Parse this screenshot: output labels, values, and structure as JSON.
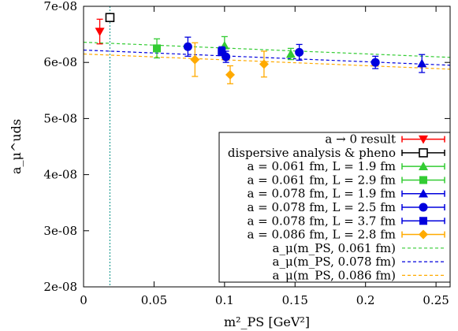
{
  "chart_data": {
    "type": "scatter",
    "xlabel": "m²_PS [GeV²]",
    "ylabel": "a_μ^uds",
    "xlim": [
      0,
      0.26
    ],
    "ylim": [
      2e-08,
      7e-08
    ],
    "x_ticks": [
      {
        "value": 0,
        "label": "0"
      },
      {
        "value": 0.05,
        "label": "0.05"
      },
      {
        "value": 0.1,
        "label": "0.1"
      },
      {
        "value": 0.15,
        "label": "0.15"
      },
      {
        "value": 0.2,
        "label": "0.2"
      },
      {
        "value": 0.25,
        "label": "0.25"
      }
    ],
    "y_ticks": [
      {
        "value": 2e-08,
        "label": "2e-08"
      },
      {
        "value": 3e-08,
        "label": "3e-08"
      },
      {
        "value": 4e-08,
        "label": "4e-08"
      },
      {
        "value": 5e-08,
        "label": "5e-08"
      },
      {
        "value": 6e-08,
        "label": "6e-08"
      },
      {
        "value": 7e-08,
        "label": "7e-08"
      }
    ],
    "reference_vline": {
      "x": 0.0187,
      "color": "#2aa198"
    },
    "legend_position": "bottom-right",
    "series": [
      {
        "name": "a → 0 result",
        "color": "#ff0000",
        "marker": "triangle-down",
        "points": [
          {
            "x": 0.0115,
            "y": 6.55e-08,
            "yerr": 2.2e-09
          }
        ]
      },
      {
        "name": "dispersive analysis & pheno",
        "color": "#000000",
        "marker": "open-square",
        "points": [
          {
            "x": 0.0187,
            "y": 6.8e-08,
            "xerr": 0.003,
            "yerr": 5e-10
          }
        ]
      },
      {
        "name": "a = 0.061 fm, L = 1.9 fm",
        "color": "#33cc33",
        "marker": "triangle",
        "points": [
          {
            "x": 0.1,
            "y": 6.3e-08,
            "yerr": 1.6e-09
          },
          {
            "x": 0.147,
            "y": 6.15e-08,
            "yerr": 1e-09
          }
        ]
      },
      {
        "name": "a = 0.061 fm, L = 2.9 fm",
        "color": "#33cc33",
        "marker": "square",
        "points": [
          {
            "x": 0.052,
            "y": 6.25e-08,
            "yerr": 1.7e-09
          }
        ]
      },
      {
        "name": "a = 0.078 fm, L = 1.9 fm",
        "color": "#0000dd",
        "marker": "triangle",
        "points": [
          {
            "x": 0.24,
            "y": 5.98e-08,
            "yerr": 1.6e-09
          }
        ]
      },
      {
        "name": "a = 0.078 fm, L = 2.5 fm",
        "color": "#0000dd",
        "marker": "circle",
        "points": [
          {
            "x": 0.074,
            "y": 6.28e-08,
            "yerr": 1.7e-09
          },
          {
            "x": 0.101,
            "y": 6.1e-08,
            "yerr": 1e-09
          },
          {
            "x": 0.153,
            "y": 6.18e-08,
            "yerr": 1.4e-09
          },
          {
            "x": 0.207,
            "y": 6e-08,
            "yerr": 1.1e-09
          }
        ]
      },
      {
        "name": "a = 0.078 fm, L = 3.7 fm",
        "color": "#0000dd",
        "marker": "square",
        "points": [
          {
            "x": 0.098,
            "y": 6.2e-08,
            "yerr": 8e-10
          }
        ]
      },
      {
        "name": "a = 0.086 fm, L = 2.8 fm",
        "color": "#ffaa00",
        "marker": "diamond",
        "points": [
          {
            "x": 0.079,
            "y": 6.05e-08,
            "yerr": 3e-09
          },
          {
            "x": 0.104,
            "y": 5.78e-08,
            "yerr": 1.6e-09
          },
          {
            "x": 0.128,
            "y": 5.97e-08,
            "yerr": 2.3e-09
          }
        ]
      }
    ],
    "fit_lines": [
      {
        "name": "a_μ(m_PS, 0.061 fm)",
        "color": "#33cc33",
        "from": {
          "x": 0,
          "y": 6.36e-08
        },
        "to": {
          "x": 0.26,
          "y": 6.09e-08
        }
      },
      {
        "name": "a_μ(m_PS, 0.078 fm)",
        "color": "#0000dd",
        "from": {
          "x": 0,
          "y": 6.22e-08
        },
        "to": {
          "x": 0.26,
          "y": 5.95e-08
        }
      },
      {
        "name": "a_μ(m_PS, 0.086 fm)",
        "color": "#ffaa00",
        "from": {
          "x": 0,
          "y": 6.15e-08
        },
        "to": {
          "x": 0.26,
          "y": 5.88e-08
        }
      }
    ]
  }
}
